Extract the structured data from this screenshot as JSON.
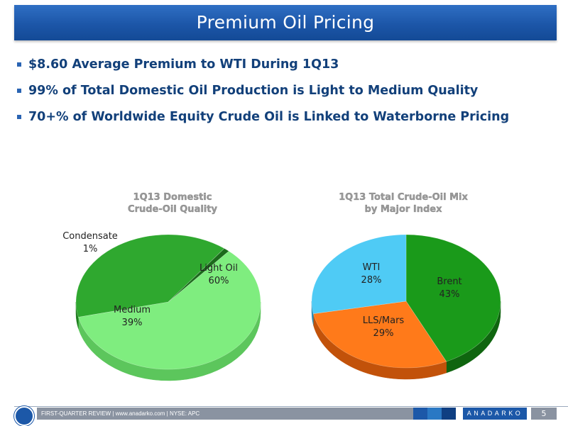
{
  "title": "Premium Oil Pricing",
  "bullets": [
    "$8.60 Average Premium to WTI During 1Q13",
    "99% of Total Domestic Oil Production is Light to Medium Quality",
    "70+% of Worldwide Equity Crude Oil is Linked to Waterborne Pricing"
  ],
  "chart_data": [
    {
      "type": "pie",
      "title": "1Q13 Domestic Crude-Oil Quality",
      "title_lines": [
        "1Q13 Domestic",
        "Crude-Oil Quality"
      ],
      "slices": [
        {
          "name": "Light Oil",
          "value": 60,
          "label": "60%",
          "color": "#7fed7f",
          "side_color": "#5cc65c"
        },
        {
          "name": "Medium",
          "value": 39,
          "label": "39%",
          "color": "#2fa82f",
          "side_color": "#1f7f1f"
        },
        {
          "name": "Condensate",
          "value": 1,
          "label": "1%",
          "color": "#1b6b1b",
          "side_color": "#0f4a0f"
        }
      ]
    },
    {
      "type": "pie",
      "title": "1Q13 Total Crude-Oil Mix by Major Index",
      "title_lines": [
        "1Q13  Total Crude-Oil Mix",
        "by Major Index"
      ],
      "slices": [
        {
          "name": "Brent",
          "value": 43,
          "label": "43%",
          "color": "#1a9a1a",
          "side_color": "#0f650f"
        },
        {
          "name": "LLS/Mars",
          "value": 29,
          "label": "29%",
          "color": "#ff7a1a",
          "side_color": "#c2520a"
        },
        {
          "name": "WTI",
          "value": 28,
          "label": "28%",
          "color": "#4fcbf5",
          "side_color": "#2a8fb8"
        }
      ]
    }
  ],
  "footer": {
    "text": "FIRST-QUARTER REVIEW  |  www.anadarko.com  |  NYSE: APC",
    "brand": "ANADARKO",
    "page": "5",
    "block_colors": [
      "#1c58a8",
      "#2a78c4",
      "#0f3f82"
    ]
  }
}
